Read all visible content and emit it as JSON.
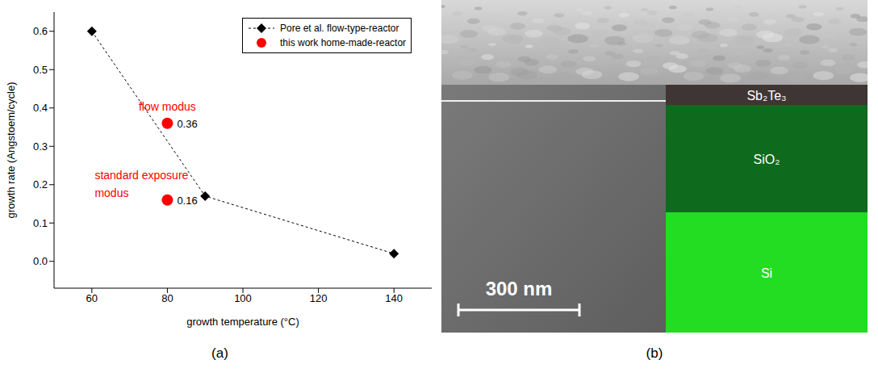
{
  "chart_data": {
    "type": "scatter",
    "x_label": "growth temperature (°C)",
    "y_label": "growth rate (Angstoem/cycle)",
    "xlim": [
      50,
      150
    ],
    "xticks": [
      60,
      80,
      100,
      120,
      140
    ],
    "ylim": [
      -0.07,
      0.65
    ],
    "yticks": [
      {
        "value": 0,
        "label": "0.0"
      },
      0.1,
      0.2,
      0.3,
      0.4,
      0.5,
      0.6
    ],
    "grid": false,
    "legend": "upper right",
    "series": [
      {
        "name": "Pore et al. flow-type-reactor",
        "color": "#000000",
        "marker": "diamond",
        "line_style": "dashed",
        "x": [
          60,
          90,
          140
        ],
        "values": [
          0.6,
          0.17,
          0.02
        ]
      },
      {
        "name": "this work home-made-reactor",
        "color": "#ff0000",
        "marker": "circle",
        "line_style": "none",
        "data_labels": true,
        "x": [
          80,
          80
        ],
        "values": [
          0.36,
          0.16
        ]
      }
    ],
    "annotations": [
      {
        "text": "flow modus",
        "x": 80,
        "y": 0.36,
        "color": "#ff0000"
      },
      {
        "text": "standard exposure modus",
        "x": 80,
        "y": 0.16,
        "color": "#ff0000"
      }
    ]
  },
  "panel_labels": [
    "(a)",
    "(b)"
  ],
  "micrograph": {
    "layers": [
      {
        "name": "Sb₂Te₃",
        "color": "#3f3535"
      },
      {
        "name": "SiO₂",
        "color": "#0e6a1c"
      },
      {
        "name": "Si",
        "color": "#22dd22"
      }
    ],
    "scale_bar": "300 nm"
  }
}
